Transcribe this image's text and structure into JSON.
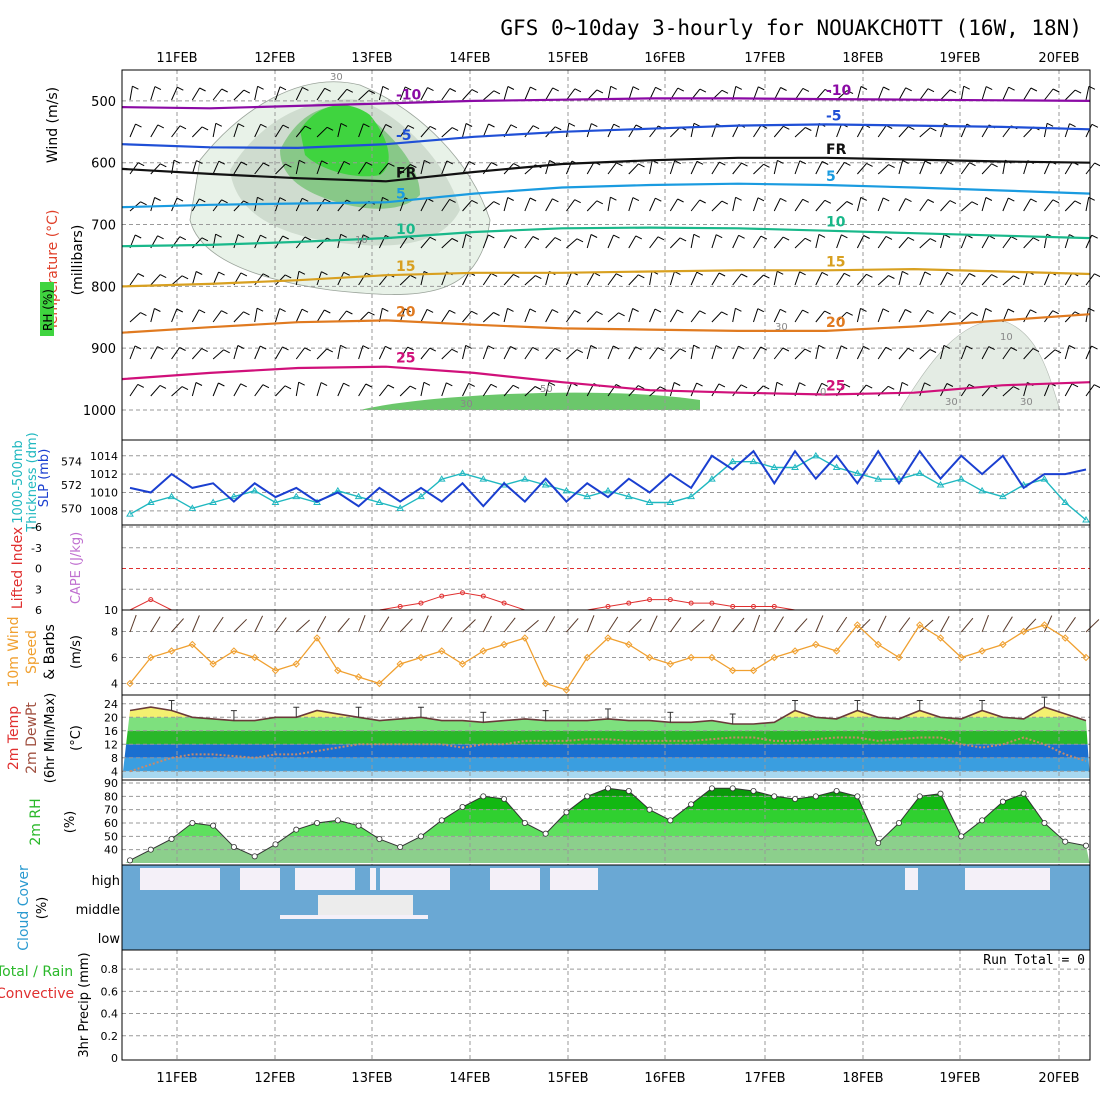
{
  "chart_data": {
    "type": "meteogram",
    "title": "GFS 0~10day 3-hourly for NOUAKCHOTT (16W, 18N)",
    "x_labels": [
      "11FEB",
      "12FEB",
      "13FEB",
      "14FEB",
      "15FEB",
      "16FEB",
      "17FEB",
      "18FEB",
      "19FEB",
      "20FEB"
    ],
    "panels": {
      "profile": {
        "ylabel": "(millibars)",
        "side_labels": {
          "rh": "RH (%)",
          "temperature": "Temperature (°C)",
          "wind": "Wind (m/s)"
        },
        "pressure_levels": [
          500,
          600,
          700,
          800,
          900,
          1000
        ],
        "ylim": [
          450,
          1000
        ],
        "isotherms": [
          {
            "label": "-10",
            "color": "#8b0aa5",
            "p": [
              510,
              512,
              508,
              504,
              500,
              498,
              496,
              496,
              497,
              498,
              499,
              500
            ]
          },
          {
            "label": "-5",
            "color": "#1f4fd6",
            "p": [
              570,
              575,
              576,
              570,
              558,
              550,
              545,
              540,
              538,
              540,
              542,
              546
            ]
          },
          {
            "label": "FR",
            "color": "#111111",
            "p": [
              610,
              618,
              625,
              630,
              615,
              602,
              596,
              592,
              592,
              595,
              598,
              600
            ]
          },
          {
            "label": "5",
            "color": "#1a9be0",
            "p": [
              672,
              668,
              666,
              664,
              650,
              640,
              636,
              634,
              636,
              640,
              645,
              650
            ]
          },
          {
            "label": "10",
            "color": "#19b88a",
            "p": [
              735,
              733,
              728,
              722,
              712,
              706,
              705,
              706,
              710,
              714,
              718,
              722
            ]
          },
          {
            "label": "15",
            "color": "#d8a020",
            "p": [
              800,
              796,
              790,
              782,
              778,
              778,
              776,
              774,
              774,
              772,
              776,
              780
            ]
          },
          {
            "label": "20",
            "color": "#e07a20",
            "p": [
              875,
              866,
              858,
              855,
              862,
              868,
              870,
              872,
              872,
              865,
              855,
              845
            ]
          },
          {
            "label": "25",
            "color": "#d0107a",
            "p": [
              950,
              940,
              932,
              930,
              940,
              955,
              968,
              972,
              975,
              972,
              960,
              955
            ]
          }
        ],
        "contour_labels": [
          "30",
          "10",
          "50",
          "30",
          "10",
          "30",
          "30",
          "30",
          "0"
        ]
      },
      "slp_thickness": {
        "ylabel_left": "1000-500mb Thickness (dm)",
        "ylabel_right": "SLP (mb)",
        "left_ticks": [
          570,
          572,
          574
        ],
        "right_ticks": [
          1008,
          1010,
          1012,
          1014
        ],
        "thickness": [
          569.5,
          570.5,
          571,
          570,
          570.5,
          571,
          571.5,
          570.5,
          571,
          570.5,
          571.5,
          571,
          570.5,
          570,
          571,
          572.5,
          573,
          572.5,
          572,
          572.5,
          572,
          571.5,
          571,
          571.5,
          571,
          570.5,
          570.5,
          571,
          572.5,
          574,
          574,
          573.5,
          573.5,
          574.5,
          573.5,
          573,
          572.5,
          572.5,
          573,
          572,
          572.5,
          571.5,
          571,
          572,
          572.5,
          570.5,
          569
        ],
        "slp": [
          1010.5,
          1010,
          1012,
          1010.5,
          1011,
          1009,
          1011,
          1009.5,
          1010.5,
          1009,
          1010,
          1008.5,
          1010.5,
          1009,
          1010.5,
          1009,
          1011,
          1008.5,
          1011,
          1009,
          1011.5,
          1009,
          1011,
          1009.5,
          1011.5,
          1010,
          1012,
          1010.5,
          1014,
          1012.5,
          1014.5,
          1011,
          1014.5,
          1011.5,
          1014,
          1011,
          1014.5,
          1011,
          1014.5,
          1011.5,
          1014,
          1012,
          1014,
          1010.5,
          1012,
          1012,
          1012.5
        ]
      },
      "cape_li": {
        "ylabel_left": "Lifted Index",
        "ylabel_right": "CAPE (J/kg)",
        "left_ticks": [
          "-6",
          "-3",
          "0",
          "3",
          "6"
        ],
        "right_ticks": [
          "10"
        ],
        "lifted_index": [
          6,
          4.5,
          6,
          6,
          6,
          6,
          6,
          6,
          6,
          6,
          6,
          6,
          6,
          5.5,
          5,
          4,
          3.5,
          4,
          5,
          6,
          6,
          6,
          6,
          5.5,
          5,
          4.5,
          4.5,
          5,
          5,
          5.5,
          5.5,
          5.5,
          6,
          6,
          6,
          6,
          6,
          6,
          6,
          6,
          6,
          6,
          6,
          6,
          6,
          6,
          6
        ]
      },
      "wind10m": {
        "ylabel": "10m Wind Speed & Barbs (m/s)",
        "yticks": [
          4,
          6,
          8
        ],
        "ylim": [
          3.5,
          9.5
        ],
        "speed": [
          4,
          6,
          6.5,
          7,
          5.5,
          6.5,
          6,
          5,
          5.5,
          7.5,
          5,
          4.5,
          4,
          5.5,
          6,
          6.5,
          5.5,
          6.5,
          7,
          7.5,
          4,
          3.5,
          6,
          7.5,
          7,
          6,
          5.5,
          6,
          6,
          5,
          5,
          6,
          6.5,
          7,
          6.5,
          8.5,
          7,
          6,
          8.5,
          7.5,
          6,
          6.5,
          7,
          8,
          8.5,
          7.5,
          6
        ]
      },
      "temp2m": {
        "ylabel": "2m Temp, 2m DewPt, (6hr Min/Max) (°C)",
        "yticks": [
          4,
          8,
          12,
          16,
          20,
          24
        ],
        "ylim": [
          2,
          26
        ],
        "temperature": [
          22,
          23,
          22,
          20,
          19.5,
          19,
          19,
          20,
          20,
          22,
          21,
          20,
          19,
          19.5,
          20,
          19,
          19,
          18.5,
          19,
          19.5,
          19,
          19,
          19,
          19.5,
          19,
          19,
          18.5,
          18.5,
          19,
          18,
          18,
          18.5,
          22,
          20,
          19.5,
          22,
          20,
          19.5,
          22,
          20,
          19.5,
          22,
          20,
          19.5,
          23,
          21,
          19
        ],
        "dewpoint": [
          4,
          6,
          8,
          9,
          9,
          8.5,
          8,
          9,
          9,
          10,
          11,
          12,
          12,
          12,
          12,
          12,
          11,
          12,
          12,
          13,
          13,
          13,
          13.5,
          13.5,
          13,
          13,
          13,
          13,
          13.5,
          14,
          14,
          13,
          13,
          13.5,
          14,
          14,
          13,
          13.5,
          14,
          14,
          12,
          11,
          12,
          14,
          12,
          9,
          7
        ]
      },
      "rh2m": {
        "ylabel": "2m RH (%)",
        "yticks": [
          40,
          50,
          60,
          70,
          80,
          90
        ],
        "ylim": [
          30,
          90
        ],
        "rh": [
          32,
          40,
          48,
          60,
          58,
          42,
          35,
          44,
          55,
          60,
          62,
          58,
          48,
          42,
          50,
          62,
          72,
          80,
          78,
          60,
          52,
          68,
          80,
          86,
          84,
          70,
          62,
          74,
          86,
          86,
          84,
          80,
          78,
          80,
          84,
          80,
          45,
          60,
          80,
          82,
          50,
          62,
          76,
          82,
          60,
          46,
          43
        ]
      },
      "cloud": {
        "ylabel": "Cloud Cover (%)",
        "levels": [
          "high",
          "middle",
          "low"
        ]
      },
      "precip": {
        "ylabel_left": "Total / Rain",
        "ylabel_left2": "Convective",
        "ylabel": "3hr Precip (mm)",
        "yticks": [
          "0",
          "0.2",
          "0.4",
          "0.6",
          "0.8"
        ],
        "ylim": [
          0,
          0.9
        ],
        "run_total": "Run Total = 0"
      }
    }
  }
}
